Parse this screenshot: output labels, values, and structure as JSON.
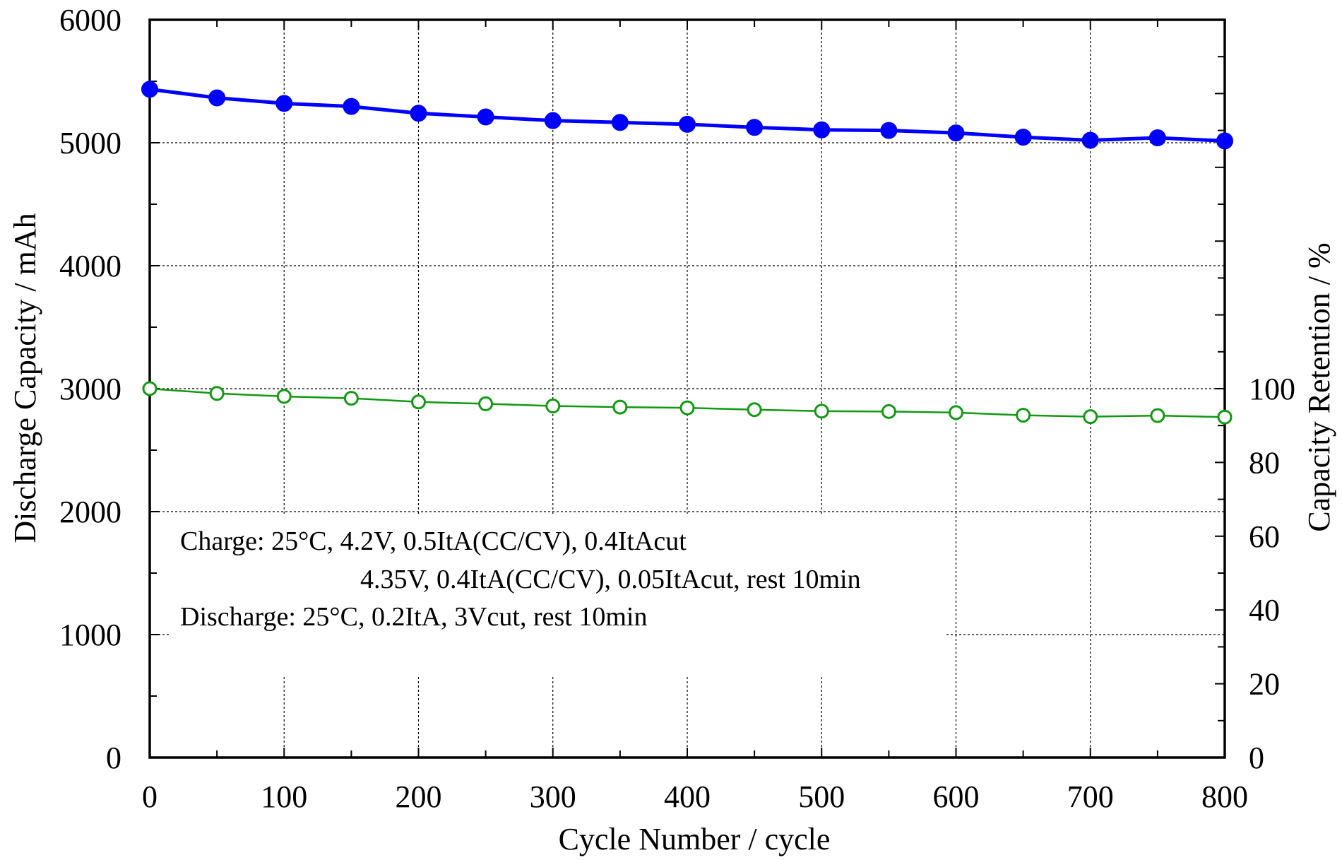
{
  "chart_data": {
    "type": "line",
    "xlabel": "Cycle Number / cycle",
    "ylabel": "Discharge Capacity / mAh",
    "y2label": "Capacity Retention / %",
    "xlim": [
      0,
      800
    ],
    "ylim": [
      0,
      6000
    ],
    "y2lim": [
      0,
      200
    ],
    "x_ticks": [
      0,
      100,
      200,
      300,
      400,
      500,
      600,
      700,
      800
    ],
    "y_ticks": [
      0,
      1000,
      2000,
      3000,
      4000,
      5000,
      6000
    ],
    "y2_ticks": [
      0,
      20,
      40,
      60,
      80,
      100
    ],
    "grid": true,
    "x": [
      0,
      50,
      100,
      150,
      200,
      250,
      300,
      350,
      400,
      450,
      500,
      550,
      600,
      650,
      700,
      750,
      800
    ],
    "series": [
      {
        "axis": "left",
        "color": "#0000ff",
        "marker": "filled-circle",
        "values": [
          5435,
          5365,
          5320,
          5295,
          5240,
          5210,
          5180,
          5165,
          5150,
          5125,
          5105,
          5100,
          5080,
          5045,
          5020,
          5040,
          5015
        ]
      },
      {
        "axis": "right",
        "color": "#119911",
        "marker": "open-circle",
        "values": [
          100,
          98.7,
          97.9,
          97.4,
          96.4,
          95.9,
          95.3,
          95.0,
          94.8,
          94.3,
          93.9,
          93.8,
          93.5,
          92.8,
          92.4,
          92.7,
          92.3
        ]
      }
    ],
    "annotation": {
      "lines": [
        "Charge: 25°C, 4.2V, 0.5ItA(CC/CV), 0.4ItAcut",
        "4.35V, 0.4ItA(CC/CV), 0.05ItAcut, rest 10min",
        "Discharge: 25°C, 0.2ItA, 3Vcut, rest 10min"
      ]
    }
  }
}
